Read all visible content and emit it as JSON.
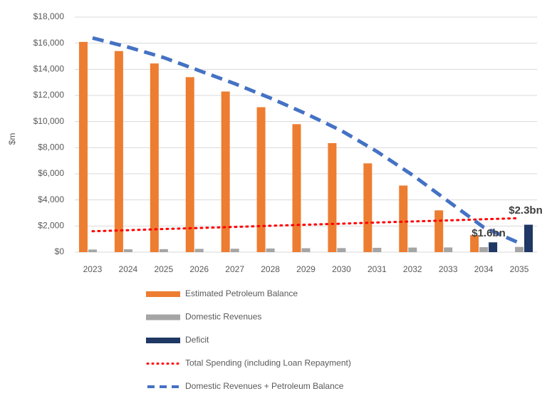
{
  "chart_data": {
    "type": "bar",
    "y_label": "$m",
    "categories": [
      "2023",
      "2024",
      "2025",
      "2026",
      "2027",
      "2028",
      "2029",
      "2030",
      "2031",
      "2032",
      "2033",
      "2034",
      "2035"
    ],
    "series": [
      {
        "name": "Estimated Petroleum Balance",
        "kind": "bar",
        "color": "#ed7d31",
        "values": [
          16100,
          15400,
          14450,
          13400,
          12300,
          11100,
          9800,
          8350,
          6800,
          5100,
          3200,
          1300,
          0
        ]
      },
      {
        "name": "Domestic Revenues",
        "kind": "bar",
        "color": "#a5a5a5",
        "values": [
          200,
          220,
          230,
          250,
          260,
          280,
          300,
          310,
          330,
          350,
          360,
          380,
          400
        ]
      },
      {
        "name": "Deficit",
        "kind": "bar",
        "color": "#1f3864",
        "values": [
          0,
          0,
          0,
          0,
          0,
          0,
          0,
          0,
          0,
          0,
          0,
          750,
          2100
        ]
      },
      {
        "name": "Total Spending (including Loan Repayment)",
        "kind": "line",
        "style": "dotted",
        "color": "#ff0000",
        "values": [
          1600,
          1680,
          1770,
          1850,
          1930,
          2020,
          2100,
          2180,
          2270,
          2350,
          2430,
          2520,
          2600
        ]
      },
      {
        "name": "Domestic Revenues + Petroleum Balance",
        "kind": "line",
        "style": "dashed",
        "color": "#4472c4",
        "values": [
          16400,
          15700,
          14900,
          13900,
          12900,
          11800,
          10600,
          9300,
          7700,
          5900,
          3900,
          1900,
          700
        ]
      }
    ],
    "annotations": [
      "$2.3bn",
      "$1.6bn"
    ],
    "ylim": [
      0,
      18000
    ],
    "yticks": [
      {
        "value": 0,
        "label": "$0"
      },
      {
        "value": 2000,
        "label": "$2,000"
      },
      {
        "value": 4000,
        "label": "$4,000"
      },
      {
        "value": 6000,
        "label": "$6,000"
      },
      {
        "value": 8000,
        "label": "$8,000"
      },
      {
        "value": 10000,
        "label": "$10,000"
      },
      {
        "value": 12000,
        "label": "$12,000"
      },
      {
        "value": 14000,
        "label": "$14,000"
      },
      {
        "value": 16000,
        "label": "$16,000"
      },
      {
        "value": 18000,
        "label": "$18,000"
      }
    ],
    "grid": true
  }
}
